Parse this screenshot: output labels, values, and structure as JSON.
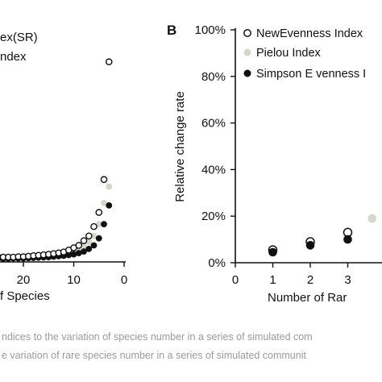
{
  "chart_data": [
    {
      "panel_label": "",
      "type": "scatter",
      "title": "",
      "xlabel": "f Species",
      "ylabel": "",
      "x_ticks": [
        "20",
        "10",
        "0"
      ],
      "xlim": [
        30,
        0
      ],
      "x_reversed": true,
      "ylim": [
        0,
        1
      ],
      "legend": {
        "placement": "top-left",
        "entries": [
          "ex(SR)",
          "ndex"
        ]
      },
      "series": [
        {
          "color": "#ffffff",
          "stroke": "#111111",
          "marker": "open-circle",
          "x": [
            28,
            27,
            26,
            25,
            24,
            23,
            22,
            21,
            20,
            19,
            18,
            17,
            16,
            15,
            14,
            13,
            12,
            11,
            10,
            9,
            8,
            7,
            6,
            5,
            4,
            3
          ],
          "y": [
            0.01,
            0.01,
            0.01,
            0.01,
            0.01,
            0.01,
            0.01,
            0.012,
            0.012,
            0.014,
            0.016,
            0.018,
            0.02,
            0.022,
            0.025,
            0.028,
            0.032,
            0.04,
            0.05,
            0.06,
            0.08,
            0.1,
            0.14,
            0.2,
            0.34,
            0.84
          ]
        },
        {
          "color": "#d6d6cc",
          "stroke": "#d6d6cc",
          "marker": "filled-circle",
          "x": [
            28,
            27,
            26,
            25,
            24,
            23,
            22,
            21,
            20,
            19,
            18,
            17,
            16,
            15,
            14,
            13,
            12,
            11,
            10,
            9,
            8,
            7,
            6,
            5,
            4,
            3
          ],
          "y": [
            0.008,
            0.008,
            0.008,
            0.008,
            0.008,
            0.009,
            0.009,
            0.01,
            0.01,
            0.011,
            0.012,
            0.014,
            0.016,
            0.018,
            0.02,
            0.022,
            0.025,
            0.03,
            0.036,
            0.045,
            0.06,
            0.075,
            0.1,
            0.15,
            0.24,
            0.31
          ]
        },
        {
          "color": "#111111",
          "stroke": "#111111",
          "marker": "filled-circle",
          "x": [
            28,
            27,
            26,
            25,
            24,
            23,
            22,
            21,
            20,
            19,
            18,
            17,
            16,
            15,
            14,
            13,
            12,
            11,
            10,
            9,
            8,
            7,
            6,
            5,
            4,
            3
          ],
          "y": [
            0.004,
            0.004,
            0.004,
            0.004,
            0.004,
            0.004,
            0.005,
            0.005,
            0.005,
            0.006,
            0.007,
            0.008,
            0.009,
            0.01,
            0.012,
            0.014,
            0.016,
            0.019,
            0.022,
            0.027,
            0.034,
            0.045,
            0.06,
            0.09,
            0.15,
            0.23
          ]
        }
      ]
    },
    {
      "panel_label": "B",
      "type": "scatter",
      "title": "",
      "xlabel": "Number of Rar",
      "ylabel": "Relative change rate",
      "x_ticks": [
        "0",
        "1",
        "2",
        "3"
      ],
      "y_ticks": [
        "0%",
        "20%",
        "40%",
        "60%",
        "80%",
        "100%"
      ],
      "xlim": [
        0,
        3.65
      ],
      "ylim": [
        0,
        100
      ],
      "legend": {
        "placement": "top-right",
        "entries": [
          "NewEvenness Index",
          "Pielou Index",
          "Simpson E venness I"
        ]
      },
      "series": [
        {
          "name": "NewEvenness Index",
          "color": "#ffffff",
          "stroke": "#111111",
          "marker": "open-circle",
          "x": [
            1,
            2,
            3
          ],
          "y": [
            5.5,
            9,
            13
          ]
        },
        {
          "name": "Pielou Index",
          "color": "#d6d6cc",
          "stroke": "#d6d6cc",
          "marker": "filled-circle",
          "x": [
            1,
            2,
            3,
            3.65
          ],
          "y": [
            5,
            8.5,
            11,
            19
          ]
        },
        {
          "name": "Simpson E venness I",
          "color": "#111111",
          "stroke": "#111111",
          "marker": "filled-circle",
          "x": [
            1,
            2,
            3
          ],
          "y": [
            4.5,
            7.5,
            10
          ]
        }
      ]
    }
  ],
  "caption": {
    "line1": "ndices to the variation of species number in a series of simulated com",
    "line2": "e variation of rare species number in a series of simulated communit"
  }
}
